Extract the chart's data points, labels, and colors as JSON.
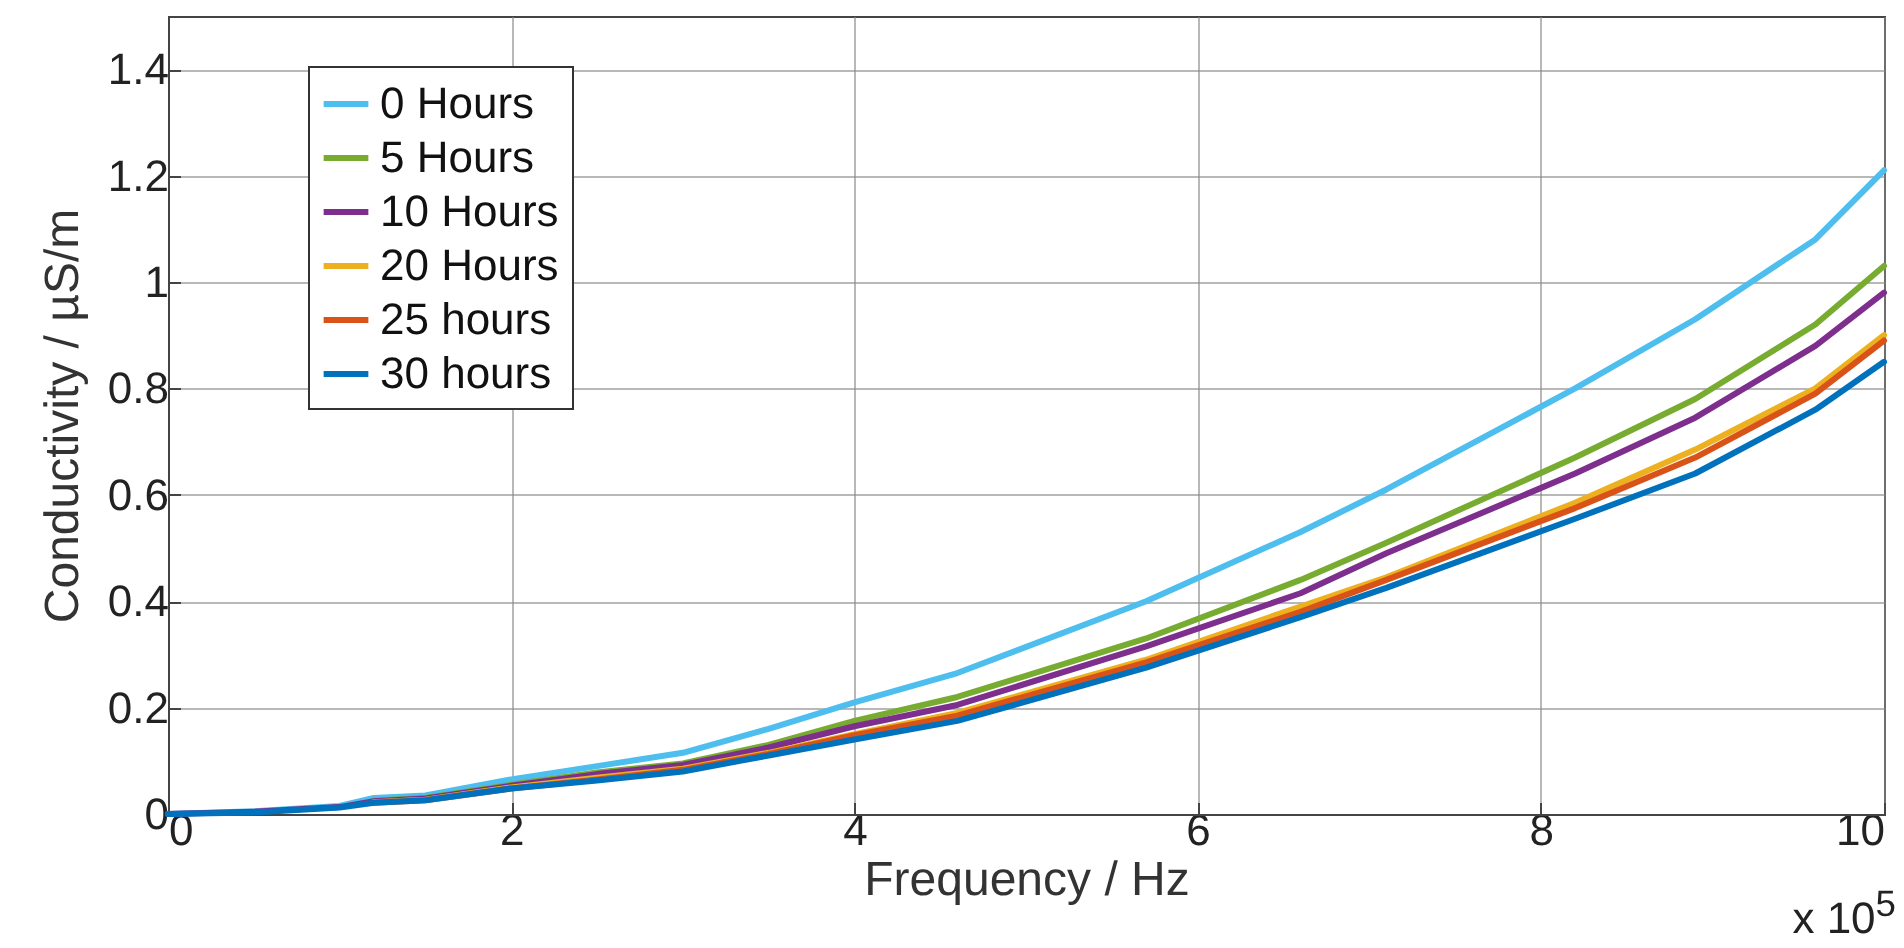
{
  "chart_data": {
    "type": "line",
    "xlabel": "Frequency / Hz",
    "ylabel": "Conductivity / µS/m",
    "annotations": [
      "x 10$^{5}$"
    ],
    "x": [
      0,
      0.5,
      1,
      1.2,
      1.5,
      2,
      2.5,
      3,
      3.5,
      4,
      4.6,
      5.7,
      6.6,
      7.1,
      8.2,
      8.9,
      9.6,
      10
    ],
    "series": [
      {
        "name": "0 Hours",
        "color": "#4dbeee",
        "values": [
          0,
          0.005,
          0.015,
          0.03,
          0.035,
          0.065,
          0.09,
          0.115,
          0.16,
          0.21,
          0.265,
          0.4,
          0.53,
          0.61,
          0.8,
          0.93,
          1.08,
          1.21
        ]
      },
      {
        "name": "5 Hours",
        "color": "#77ac30",
        "values": [
          null,
          null,
          null,
          0.025,
          0.03,
          0.055,
          0.078,
          0.095,
          0.13,
          0.175,
          0.22,
          0.33,
          0.44,
          0.51,
          0.67,
          0.78,
          0.92,
          1.03
        ]
      },
      {
        "name": "10 Hours",
        "color": "#7e2f8e",
        "values": [
          0,
          0.004,
          0.013,
          0.024,
          0.029,
          0.053,
          0.075,
          0.092,
          0.125,
          0.165,
          0.205,
          0.315,
          0.415,
          0.49,
          0.64,
          0.745,
          0.88,
          0.98
        ]
      },
      {
        "name": "20 Hours",
        "color": "#edb120",
        "values": [
          null,
          null,
          null,
          0.022,
          0.027,
          0.05,
          0.068,
          0.085,
          0.115,
          0.15,
          0.19,
          0.29,
          0.39,
          0.445,
          0.585,
          0.685,
          0.8,
          0.9
        ]
      },
      {
        "name": "25 hours",
        "color": "#d95319",
        "values": [
          null,
          null,
          null,
          0.021,
          0.026,
          0.048,
          0.065,
          0.083,
          0.113,
          0.148,
          0.185,
          0.285,
          0.38,
          0.44,
          0.575,
          0.67,
          0.79,
          0.89
        ]
      },
      {
        "name": "30 hours",
        "color": "#0072bd",
        "values": [
          0,
          0.003,
          0.012,
          0.021,
          0.026,
          0.048,
          0.063,
          0.08,
          0.11,
          0.14,
          0.175,
          0.275,
          0.37,
          0.425,
          0.555,
          0.64,
          0.76,
          0.85
        ]
      }
    ],
    "xlim": [
      0,
      10
    ],
    "xticks": [
      0,
      2,
      4,
      6,
      8,
      10
    ],
    "ylim": [
      0,
      1.5
    ],
    "yticks": [
      0,
      0.2,
      0.4,
      0.6,
      0.8,
      1,
      1.2,
      1.4
    ],
    "grid": true,
    "legend": "top left",
    "line_style": "solid"
  }
}
